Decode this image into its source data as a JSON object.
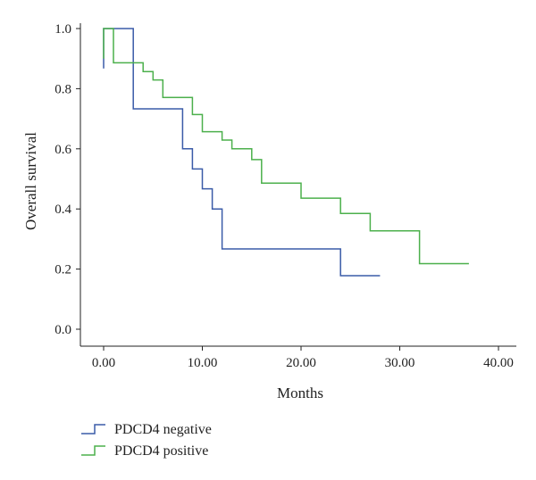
{
  "chart_data": {
    "type": "line",
    "subtype": "kaplan-meier step",
    "title": "",
    "xlabel": "Months",
    "ylabel": "Overall survival",
    "xlim": [
      -2,
      42
    ],
    "ylim": [
      -0.05,
      1.03
    ],
    "x_ticks": [
      0,
      10,
      20,
      30,
      40
    ],
    "x_tick_labels": [
      "0.00",
      "10.00",
      "20.00",
      "30.00",
      "40.00"
    ],
    "y_ticks": [
      0.0,
      0.2,
      0.4,
      0.6,
      0.8,
      1.0
    ],
    "y_tick_labels": [
      "0.0",
      "0.2",
      "0.4",
      "0.6",
      "0.8",
      "1.0"
    ],
    "grid": false,
    "legend_position": "bottom-left",
    "series": [
      {
        "name": "PDCD4 negative",
        "color": "#3a5ba8",
        "x": [
          0,
          0,
          3,
          3,
          8,
          8,
          9,
          9,
          10,
          10,
          11,
          11,
          12,
          12,
          24,
          24,
          28
        ],
        "y": [
          0.867,
          1.0,
          1.0,
          0.733,
          0.733,
          0.6,
          0.6,
          0.533,
          0.533,
          0.467,
          0.467,
          0.4,
          0.4,
          0.267,
          0.267,
          0.178,
          0.178
        ]
      },
      {
        "name": "PDCD4 positive",
        "color": "#4cb04c",
        "x": [
          0,
          0,
          1,
          1,
          4,
          4,
          5,
          5,
          6,
          6,
          9,
          9,
          10,
          10,
          12,
          12,
          13,
          13,
          15,
          15,
          16,
          16,
          20,
          20,
          24,
          24,
          27,
          27,
          32,
          32,
          37
        ],
        "y": [
          0.9,
          1.0,
          1.0,
          0.886,
          0.886,
          0.857,
          0.857,
          0.829,
          0.829,
          0.771,
          0.771,
          0.714,
          0.714,
          0.657,
          0.657,
          0.629,
          0.629,
          0.6,
          0.6,
          0.564,
          0.564,
          0.486,
          0.486,
          0.436,
          0.436,
          0.385,
          0.385,
          0.327,
          0.327,
          0.218,
          0.218
        ]
      }
    ]
  }
}
